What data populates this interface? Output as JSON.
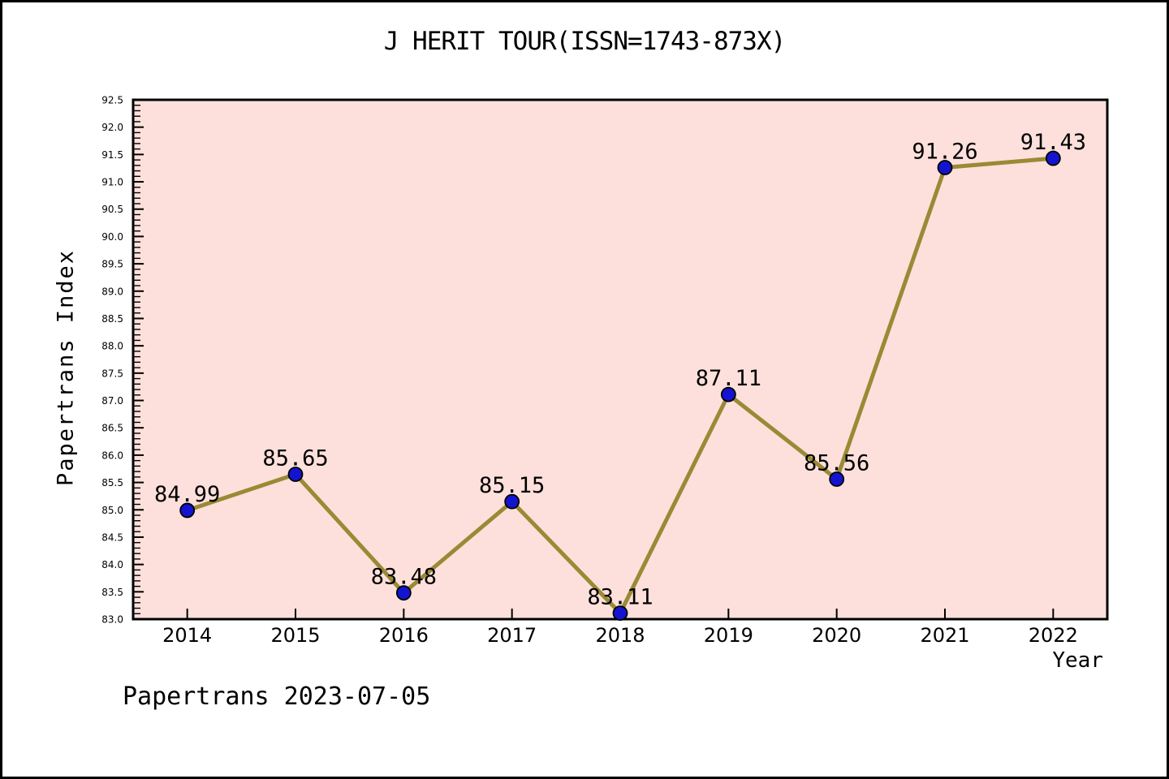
{
  "window": {
    "background": "#ffffff",
    "border_color": "#000000"
  },
  "chart_data": {
    "type": "line",
    "title": "J HERIT TOUR(ISSN=1743-873X)",
    "xlabel": "Year",
    "ylabel": "Papertrans Index",
    "footer": "Papertrans 2023-07-05",
    "x": [
      2014,
      2015,
      2016,
      2017,
      2018,
      2019,
      2020,
      2021,
      2022
    ],
    "values": [
      84.99,
      85.65,
      83.48,
      85.15,
      83.11,
      87.11,
      85.56,
      91.26,
      91.43
    ],
    "point_labels": [
      "84.99",
      "85.65",
      "83.48",
      "85.15",
      "83.11",
      "87.11",
      "85.56",
      "91.26",
      "91.43"
    ],
    "xticks": [
      "2014",
      "2015",
      "2016",
      "2017",
      "2018",
      "2019",
      "2020",
      "2021",
      "2022"
    ],
    "yticks": [
      "83.0",
      "83.5",
      "84.0",
      "84.5",
      "85.0",
      "85.5",
      "86.0",
      "86.5",
      "87.0",
      "87.5",
      "88.0",
      "88.5",
      "89.0",
      "89.5",
      "90.0",
      "90.5",
      "91.0",
      "91.5",
      "92.0",
      "92.5"
    ],
    "xlim": [
      2013.5,
      2022.5
    ],
    "ylim": [
      83.0,
      92.5
    ],
    "ytick_minor_step": 0.1,
    "grid": false,
    "legend": false,
    "colors": {
      "plot_bg": "#fde0dc",
      "line": "#998a35",
      "marker": "#1414d0",
      "marker_edge": "#000000",
      "frame": "#000000",
      "text": "#000000"
    }
  }
}
